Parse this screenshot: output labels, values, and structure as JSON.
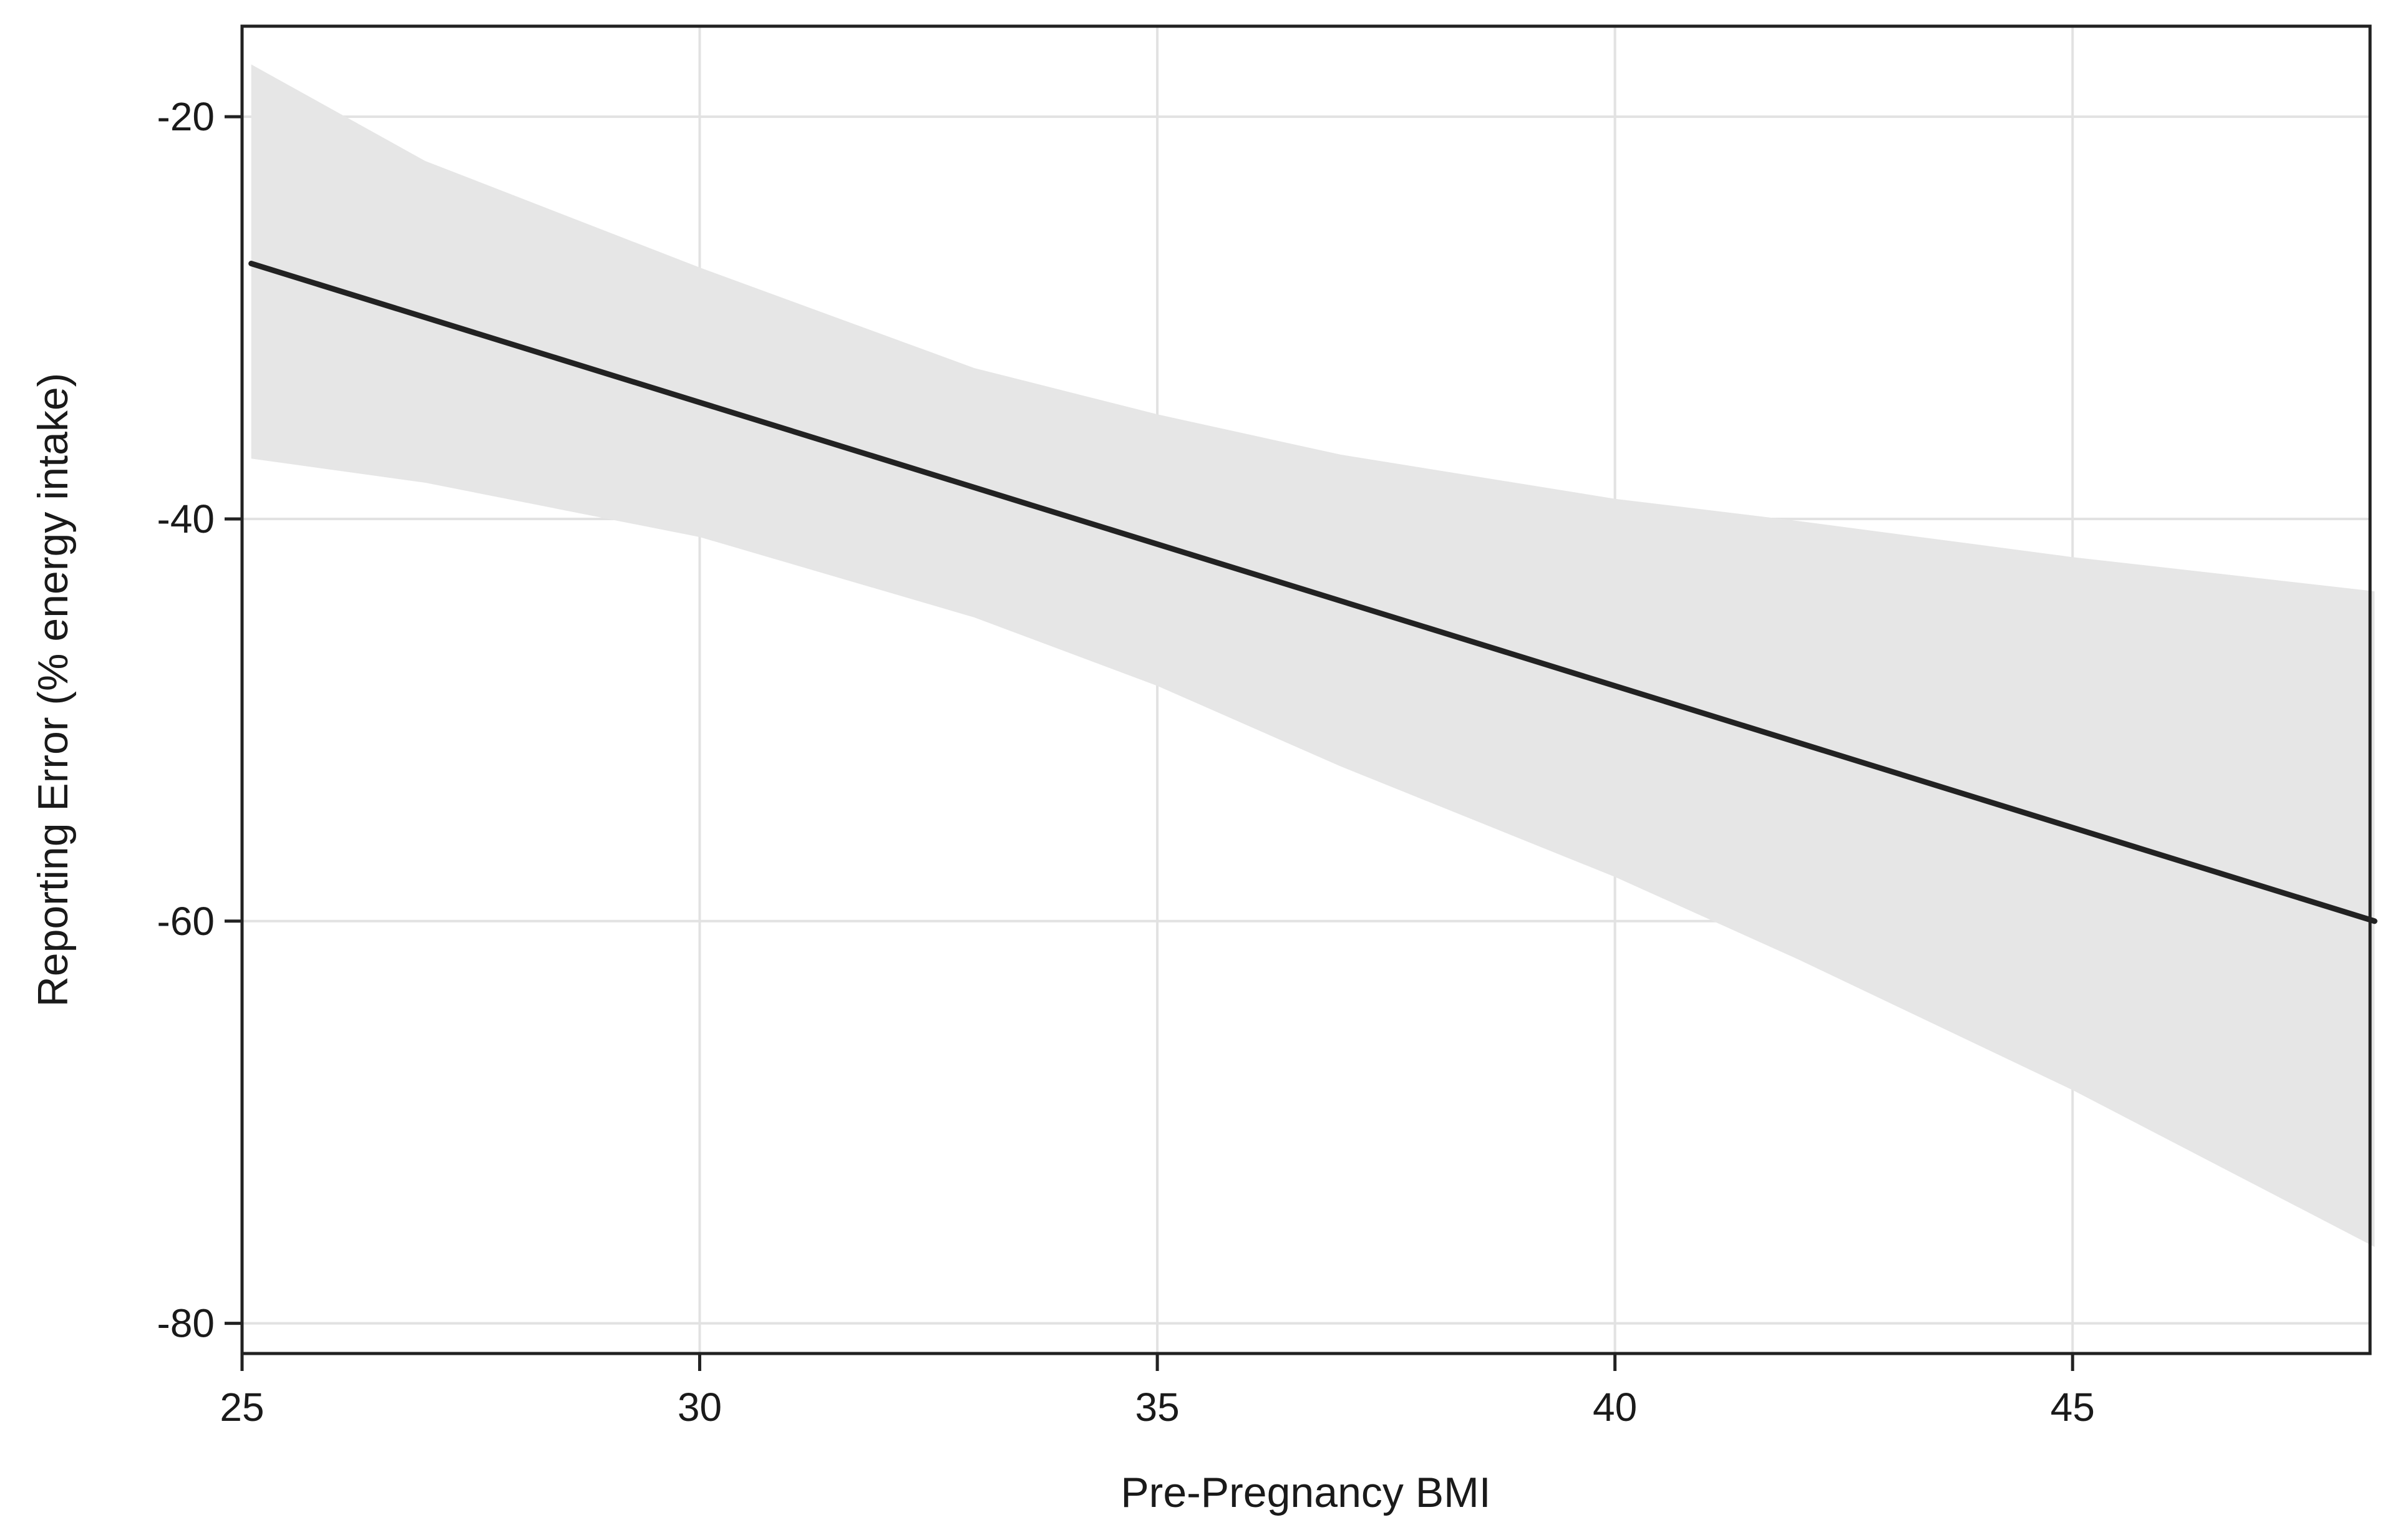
{
  "chart_data": {
    "type": "line",
    "title": "",
    "xlabel": "Pre-Pregnancy BMI",
    "ylabel": "Reporting Error (% energy intake)",
    "xlim": [
      25,
      48.25
    ],
    "ylim": [
      -81.5,
      -15.5
    ],
    "xticks": [
      25,
      30,
      35,
      40,
      45
    ],
    "yticks": [
      -20,
      -40,
      -60,
      -80
    ],
    "grid": true,
    "legend": "none",
    "series": [
      {
        "x": [
          25.1,
          48.3
        ],
        "y": [
          -27.3,
          -60.0
        ],
        "color": "#222222"
      }
    ],
    "confidence_band": {
      "color": "#e6e6e6",
      "x": [
        25.1,
        27,
        30,
        33,
        35,
        37,
        40,
        42,
        45,
        48.3
      ],
      "lower": [
        -37.0,
        -38.2,
        -40.9,
        -44.9,
        -48.3,
        -52.3,
        -57.8,
        -61.9,
        -68.4,
        -76.2
      ],
      "upper": [
        -17.4,
        -22.2,
        -27.5,
        -32.5,
        -34.8,
        -36.8,
        -39.0,
        -40.1,
        -41.9,
        -43.6
      ]
    }
  }
}
